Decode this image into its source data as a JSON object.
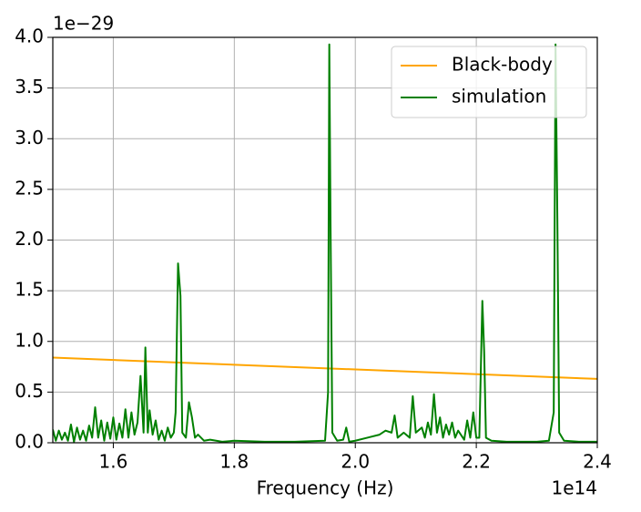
{
  "chart_data": {
    "type": "line",
    "xlabel": "Frequency (Hz)",
    "x_offset_label": "1e14",
    "y_offset_label": "1e−29",
    "xlim": [
      1.5,
      2.4
    ],
    "ylim": [
      0,
      4.0
    ],
    "xticks": [
      1.6,
      1.8,
      {
        "value": 2,
        "label": "2.0"
      },
      2.2,
      2.4
    ],
    "yticks": [
      {
        "value": 0,
        "label": "0.0"
      },
      0.5,
      {
        "value": 1,
        "label": "1.0"
      },
      1.5,
      {
        "value": 2,
        "label": "2.0"
      },
      2.5,
      {
        "value": 3,
        "label": "3.0"
      },
      3.5,
      {
        "value": 4,
        "label": "4.0"
      }
    ],
    "grid": true,
    "legend": "upper right",
    "series": [
      {
        "name": "Black-body",
        "color": "#ffa500",
        "x": [
          1.5,
          1.8,
          2.1,
          2.4
        ],
        "values": [
          0.84,
          0.77,
          0.7,
          0.63
        ]
      },
      {
        "name": "simulation",
        "color": "#008000",
        "x": [
          1.5,
          1.505,
          1.51,
          1.515,
          1.52,
          1.525,
          1.53,
          1.535,
          1.54,
          1.545,
          1.55,
          1.555,
          1.56,
          1.565,
          1.57,
          1.575,
          1.58,
          1.585,
          1.59,
          1.595,
          1.6,
          1.605,
          1.61,
          1.615,
          1.62,
          1.625,
          1.63,
          1.635,
          1.64,
          1.645,
          1.65,
          1.653,
          1.657,
          1.66,
          1.665,
          1.67,
          1.675,
          1.68,
          1.685,
          1.69,
          1.695,
          1.7,
          1.703,
          1.707,
          1.711,
          1.714,
          1.72,
          1.725,
          1.73,
          1.735,
          1.74,
          1.75,
          1.76,
          1.78,
          1.8,
          1.85,
          1.9,
          1.95,
          1.955,
          1.957,
          1.959,
          1.962,
          1.97,
          1.98,
          1.985,
          1.99,
          2.0,
          2.02,
          2.04,
          2.05,
          2.06,
          2.065,
          2.07,
          2.08,
          2.09,
          2.095,
          2.1,
          2.11,
          2.115,
          2.12,
          2.125,
          2.13,
          2.135,
          2.14,
          2.145,
          2.15,
          2.155,
          2.16,
          2.165,
          2.17,
          2.18,
          2.185,
          2.19,
          2.195,
          2.2,
          2.205,
          2.21,
          2.213,
          2.216,
          2.225,
          2.25,
          2.3,
          2.32,
          2.328,
          2.331,
          2.334,
          2.337,
          2.345,
          2.37,
          2.4
        ],
        "values": [
          0.13,
          0.02,
          0.12,
          0.03,
          0.1,
          0.02,
          0.18,
          0.01,
          0.15,
          0.03,
          0.12,
          0.02,
          0.17,
          0.05,
          0.35,
          0.05,
          0.22,
          0.02,
          0.2,
          0.04,
          0.25,
          0.03,
          0.19,
          0.05,
          0.33,
          0.05,
          0.3,
          0.08,
          0.2,
          0.66,
          0.1,
          0.94,
          0.1,
          0.32,
          0.08,
          0.22,
          0.03,
          0.12,
          0.02,
          0.15,
          0.05,
          0.1,
          0.3,
          1.77,
          1.45,
          0.1,
          0.05,
          0.4,
          0.25,
          0.05,
          0.08,
          0.02,
          0.03,
          0.01,
          0.02,
          0.01,
          0.01,
          0.02,
          0.5,
          3.93,
          2.2,
          0.1,
          0.02,
          0.03,
          0.15,
          0.01,
          0.02,
          0.05,
          0.08,
          0.12,
          0.1,
          0.27,
          0.05,
          0.1,
          0.05,
          0.46,
          0.1,
          0.15,
          0.05,
          0.2,
          0.08,
          0.48,
          0.1,
          0.25,
          0.05,
          0.18,
          0.08,
          0.2,
          0.05,
          0.12,
          0.03,
          0.22,
          0.05,
          0.3,
          0.05,
          0.05,
          1.4,
          0.9,
          0.05,
          0.02,
          0.01,
          0.01,
          0.02,
          0.3,
          3.93,
          2.2,
          0.1,
          0.02,
          0.01,
          0.01
        ]
      }
    ]
  }
}
